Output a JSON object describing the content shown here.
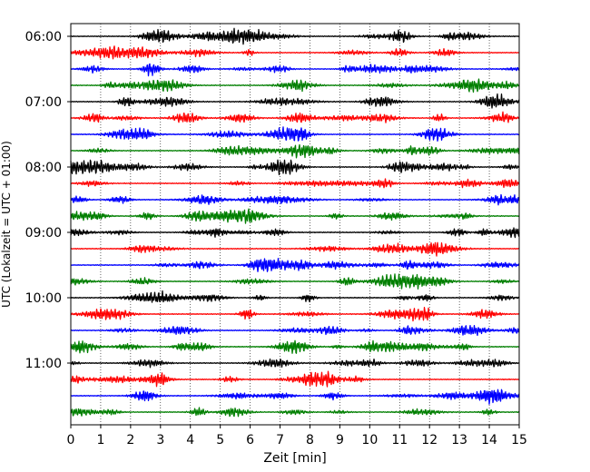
{
  "chart_data": {
    "type": "line",
    "title": "",
    "xlabel": "Zeit  [min]",
    "ylabel": "UTC (Lokalzeit = UTC + 01:00)",
    "xlim": [
      0,
      15
    ],
    "x_ticks": [
      0,
      1,
      2,
      3,
      4,
      5,
      6,
      7,
      8,
      9,
      10,
      11,
      12,
      13,
      14,
      15
    ],
    "y_ticks": [
      "06:00",
      "07:00",
      "08:00",
      "09:00",
      "10:00",
      "11:00"
    ],
    "grid": true,
    "trace_interval_min": 15,
    "first_trace": "06:00",
    "trace_count": 24,
    "trace_colors": [
      "#000000",
      "#ff0000",
      "#0000ff",
      "#007f00"
    ],
    "legend": "none"
  }
}
